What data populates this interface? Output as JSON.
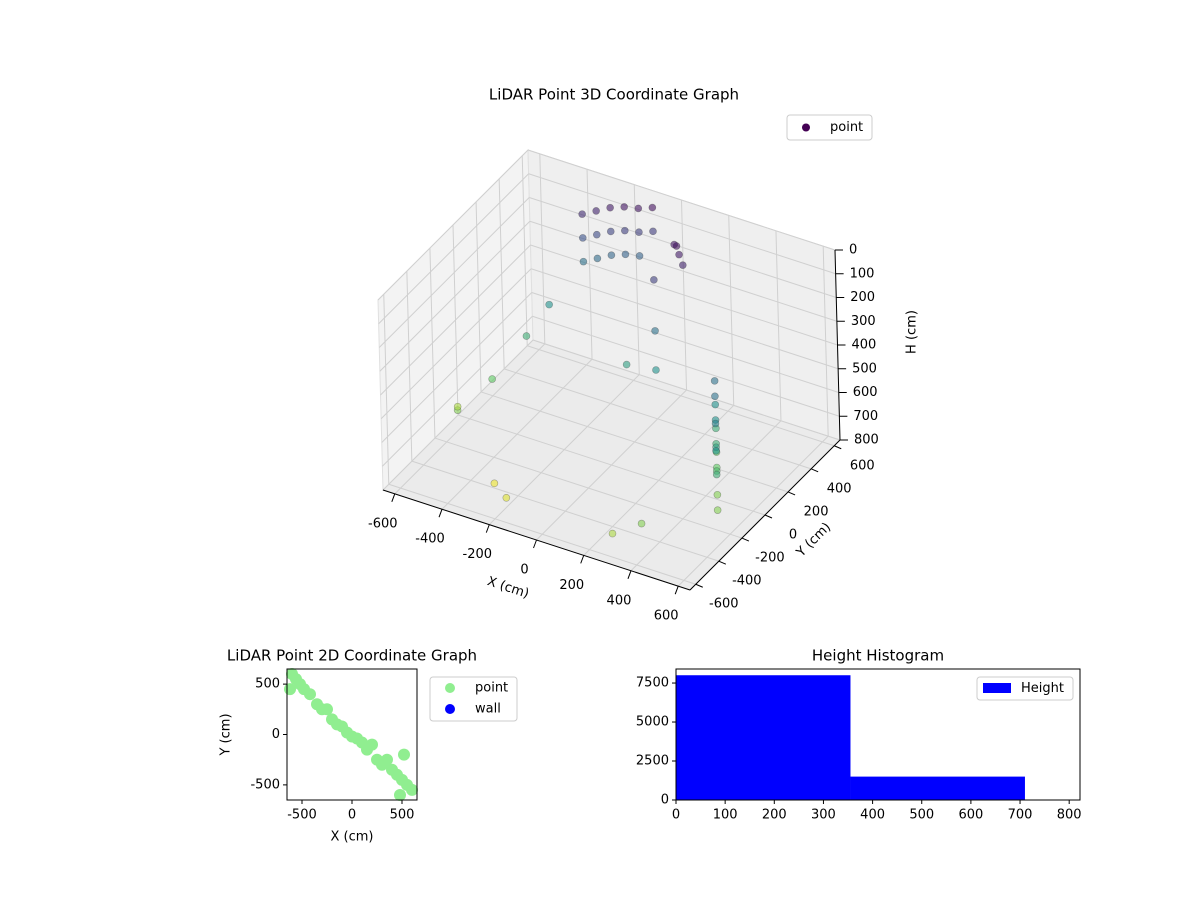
{
  "chart_data": [
    {
      "type": "scatter3d",
      "title": "LiDAR Point 3D Coordinate Graph",
      "xlabel": "X (cm)",
      "ylabel": "Y (cm)",
      "zlabel": "H (cm)",
      "xlim": [
        -650,
        650
      ],
      "ylim": [
        -650,
        650
      ],
      "zlim": [
        800,
        0
      ],
      "xticks": [
        -600,
        -400,
        -200,
        0,
        200,
        400,
        600
      ],
      "yticks": [
        -600,
        -400,
        -200,
        0,
        200,
        400,
        600
      ],
      "zticks": [
        0,
        100,
        200,
        300,
        400,
        500,
        600,
        700,
        800
      ],
      "colormap": "viridis",
      "legend": "upper right",
      "series": [
        {
          "name": "point",
          "color": "#440154",
          "x": [
            -350,
            -350,
            -350,
            -300,
            -300,
            -300,
            -250,
            -250,
            -250,
            -200,
            -200,
            -200,
            -150,
            -150,
            -150,
            -100,
            -100,
            450,
            450,
            450,
            450,
            500,
            500,
            500,
            500,
            550,
            550,
            550,
            550,
            600,
            600,
            600,
            100,
            120,
            80,
            150,
            50,
            100,
            150,
            0,
            -550,
            -600,
            -500,
            -400,
            -450,
            -300,
            -200,
            300,
            400
          ],
          "y": [
            500,
            500,
            500,
            520,
            520,
            520,
            540,
            540,
            540,
            560,
            560,
            560,
            580,
            580,
            580,
            600,
            600,
            0,
            0,
            0,
            0,
            -100,
            -100,
            -100,
            -100,
            -200,
            -200,
            -200,
            -200,
            -300,
            -300,
            -300,
            400,
            380,
            420,
            350,
            300,
            200,
            100,
            150,
            -200,
            -100,
            0,
            300,
            200,
            -400,
            -500,
            -600,
            -550
          ],
          "h": [
            100,
            200,
            300,
            80,
            180,
            280,
            60,
            160,
            260,
            50,
            150,
            250,
            50,
            150,
            250,
            40,
            140,
            300,
            400,
            500,
            600,
            300,
            400,
            500,
            600,
            350,
            450,
            550,
            650,
            400,
            500,
            650,
            40,
            60,
            50,
            80,
            150,
            300,
            400,
            450,
            650,
            700,
            600,
            400,
            500,
            780,
            760,
            700,
            650
          ]
        }
      ]
    },
    {
      "type": "scatter",
      "title": "LiDAR Point 2D Coordinate Graph",
      "xlabel": "X (cm)",
      "ylabel": "Y (cm)",
      "xlim": [
        -650,
        650
      ],
      "ylim": [
        -650,
        650
      ],
      "xticks": [
        -500,
        0,
        500
      ],
      "yticks": [
        -500,
        0,
        500
      ],
      "legend": "outside right",
      "series": [
        {
          "name": "point",
          "color": "#90ee90",
          "x": [
            -600,
            -560,
            -520,
            -480,
            -420,
            -350,
            -300,
            -250,
            -200,
            -150,
            -100,
            -50,
            0,
            50,
            100,
            150,
            200,
            250,
            300,
            350,
            400,
            450,
            500,
            550,
            600,
            -620,
            480,
            520
          ],
          "y": [
            600,
            550,
            500,
            450,
            400,
            300,
            250,
            250,
            150,
            100,
            80,
            20,
            -20,
            -40,
            -80,
            -150,
            -100,
            -250,
            -300,
            -250,
            -350,
            -400,
            -450,
            -500,
            -550,
            450,
            -600,
            -200
          ]
        },
        {
          "name": "wall",
          "color": "#0000ff",
          "x": [],
          "y": []
        }
      ]
    },
    {
      "type": "histogram",
      "title": "Height Histogram",
      "bins": [
        0,
        355,
        710
      ],
      "counts": [
        8000,
        1500
      ],
      "series_name": "Height",
      "color": "#0000ff",
      "legend": "upper right",
      "xlim": [
        0,
        822
      ],
      "ylim": [
        0,
        8400
      ],
      "xticks": [
        0,
        100,
        200,
        300,
        400,
        500,
        600,
        700,
        800
      ],
      "yticks": [
        0,
        2500,
        5000,
        7500
      ]
    }
  ]
}
